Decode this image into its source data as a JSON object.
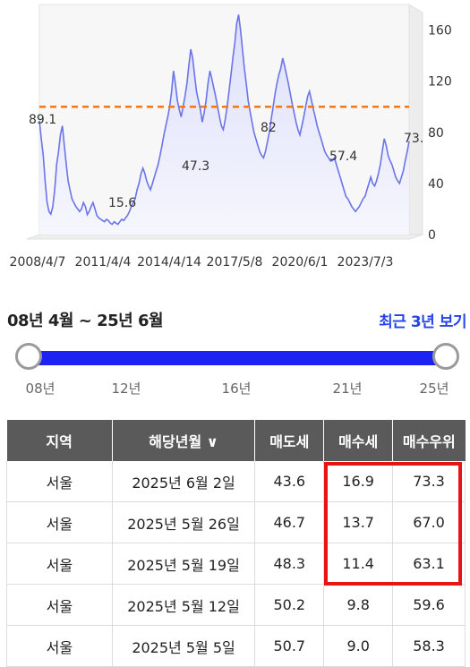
{
  "chart_data": {
    "type": "area",
    "x_tick_labels": [
      "2008/4/7",
      "2011/4/4",
      "2014/4/14",
      "2017/5/8",
      "2020/6/1",
      "2023/7/3"
    ],
    "y_ticks": [
      0,
      40,
      80,
      120,
      160
    ],
    "ylim": [
      0,
      180
    ],
    "reference_line": {
      "value": 100,
      "color": "#f07818",
      "style": "dashed"
    },
    "annotations": [
      "89.1",
      "15.6",
      "47.3",
      "82",
      "57.4",
      "73."
    ],
    "series": [
      {
        "values": [
          89,
          75,
          62,
          42,
          25,
          18,
          16,
          22,
          35,
          55,
          65,
          78,
          85,
          70,
          55,
          42,
          35,
          28,
          25,
          22,
          20,
          18,
          20,
          25,
          22,
          15.6,
          18,
          22,
          25,
          20,
          15,
          13,
          12,
          11,
          10,
          12,
          11,
          9,
          8,
          10,
          9,
          8,
          10,
          12,
          11,
          13,
          15,
          18,
          22,
          25,
          28,
          35,
          40,
          47.3,
          52,
          48,
          42,
          38,
          35,
          40,
          45,
          50,
          55,
          62,
          70,
          78,
          85,
          92,
          100,
          112,
          128,
          118,
          105,
          98,
          92,
          100,
          108,
          118,
          132,
          145,
          138,
          125,
          112,
          105,
          98,
          88,
          95,
          105,
          118,
          128,
          122,
          115,
          108,
          100,
          92,
          85,
          82,
          90,
          100,
          112,
          125,
          138,
          150,
          165,
          172,
          160,
          145,
          130,
          118,
          105,
          96,
          88,
          80,
          75,
          70,
          65,
          62,
          60,
          65,
          72,
          80,
          90,
          100,
          110,
          118,
          125,
          130,
          138,
          132,
          125,
          118,
          110,
          102,
          95,
          88,
          82,
          78,
          85,
          92,
          100,
          108,
          112,
          105,
          98,
          92,
          85,
          80,
          75,
          70,
          65,
          62,
          60,
          57.4,
          58,
          60,
          55,
          50,
          45,
          40,
          35,
          30,
          28,
          25,
          22,
          20,
          18,
          20,
          22,
          25,
          28,
          30,
          35,
          40,
          45,
          40,
          38,
          42,
          48,
          55,
          65,
          75,
          70,
          62,
          58,
          55,
          50,
          45,
          42,
          40,
          45,
          50,
          58,
          65,
          73
        ]
      }
    ],
    "line_color": "#6b74e8"
  },
  "date_range": {
    "label": "08년 4월 ~ 25년 6월",
    "recent_button": "최근 3년 보기",
    "ticks": [
      "08년",
      "12년",
      "16년",
      "21년",
      "25년"
    ]
  },
  "table": {
    "headers": [
      "지역",
      "해당년월 ∨",
      "매도세",
      "매수세",
      "매수우위"
    ],
    "rows": [
      [
        "서울",
        "2025년 6월 2일",
        "43.6",
        "16.9",
        "73.3"
      ],
      [
        "서울",
        "2025년 5월 26일",
        "46.7",
        "13.7",
        "67.0"
      ],
      [
        "서울",
        "2025년 5월 19일",
        "48.3",
        "11.4",
        "63.1"
      ],
      [
        "서울",
        "2025년 5월 12일",
        "50.2",
        "9.8",
        "59.6"
      ],
      [
        "서울",
        "2025년 5월 5일",
        "50.7",
        "9.0",
        "58.3"
      ]
    ]
  }
}
